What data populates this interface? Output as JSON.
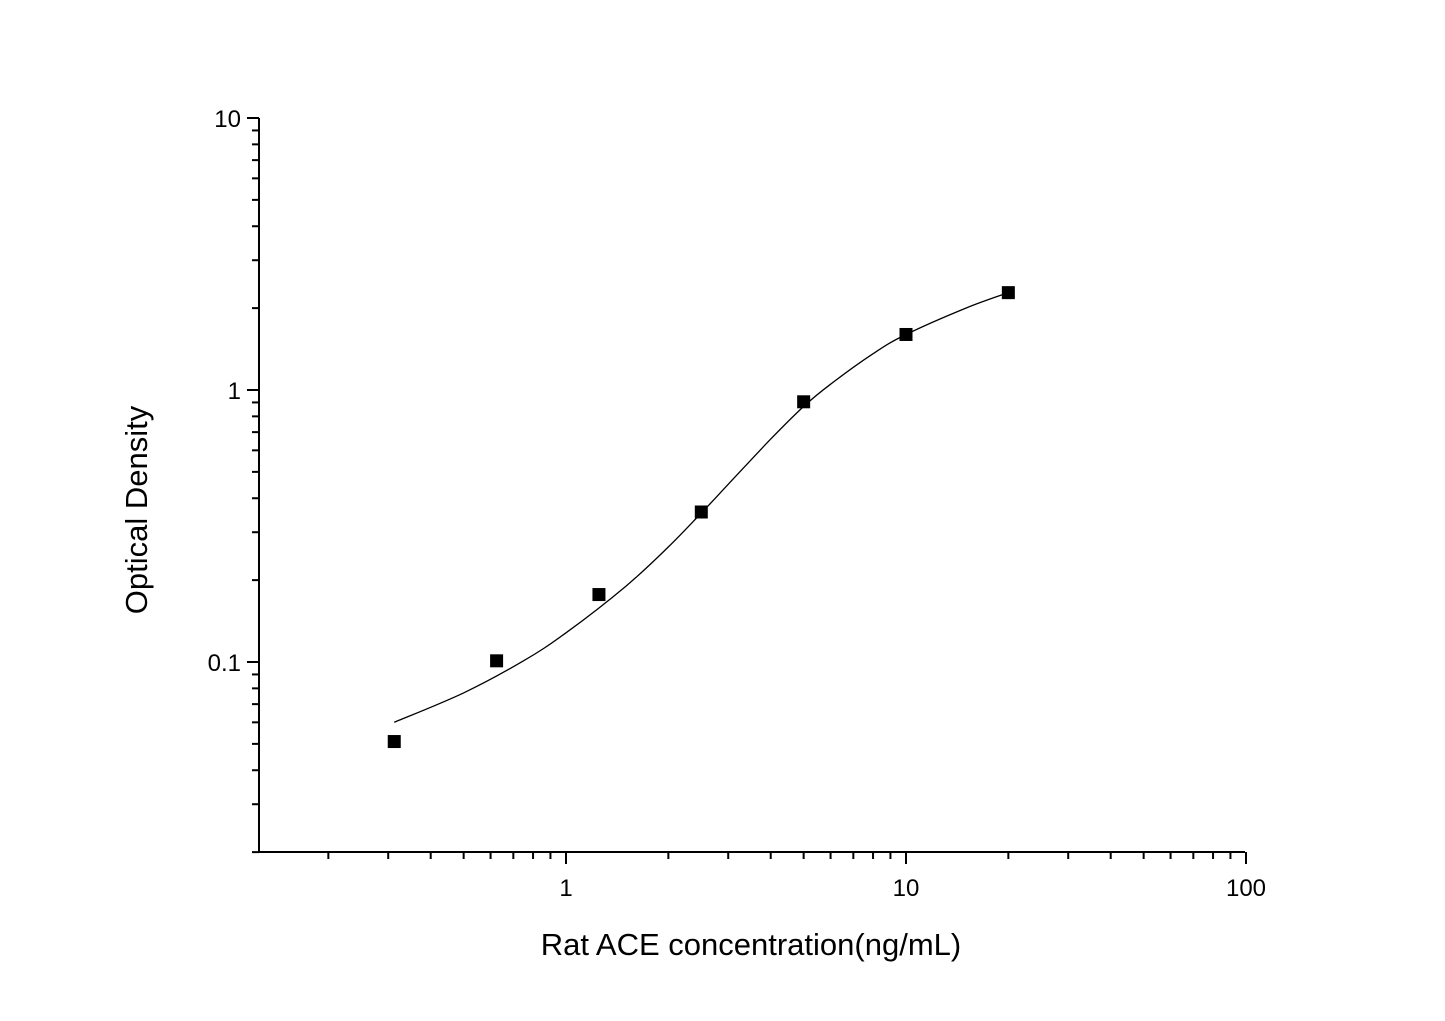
{
  "chart_data": {
    "type": "scatter",
    "title": "",
    "xlabel": "Rat ACE concentration(ng/mL)",
    "ylabel": "Optical Density",
    "x_scale": "log",
    "y_scale": "log",
    "xlim": [
      0.1,
      100
    ],
    "ylim": [
      0.02,
      10
    ],
    "x_ticks": [
      {
        "value": 1,
        "label": "1"
      },
      {
        "value": 10,
        "label": "10"
      },
      {
        "value": 100,
        "label": "100"
      }
    ],
    "y_ticks": [
      {
        "value": 0.1,
        "label": "0.1"
      },
      {
        "value": 1,
        "label": "1"
      },
      {
        "value": 10,
        "label": "10"
      }
    ],
    "grid": false,
    "legend": "none",
    "series": [
      {
        "type": "scatter",
        "marker": "square",
        "color": "#000000",
        "points": [
          {
            "x": 0.3125,
            "y": 0.051
          },
          {
            "x": 0.625,
            "y": 0.101
          },
          {
            "x": 1.25,
            "y": 0.177
          },
          {
            "x": 2.5,
            "y": 0.356
          },
          {
            "x": 5,
            "y": 0.905
          },
          {
            "x": 10,
            "y": 1.6
          },
          {
            "x": 20,
            "y": 2.28
          }
        ]
      },
      {
        "type": "line",
        "color": "#000000",
        "points": [
          {
            "x": 0.3125,
            "y": 0.06
          },
          {
            "x": 0.5,
            "y": 0.077
          },
          {
            "x": 0.75,
            "y": 0.101
          },
          {
            "x": 1,
            "y": 0.128
          },
          {
            "x": 1.5,
            "y": 0.19
          },
          {
            "x": 2,
            "y": 0.265
          },
          {
            "x": 2.5,
            "y": 0.353
          },
          {
            "x": 3,
            "y": 0.45
          },
          {
            "x": 4,
            "y": 0.66
          },
          {
            "x": 5,
            "y": 0.87
          },
          {
            "x": 6,
            "y": 1.05
          },
          {
            "x": 8,
            "y": 1.36
          },
          {
            "x": 10,
            "y": 1.6
          },
          {
            "x": 15,
            "y": 2.0
          },
          {
            "x": 20,
            "y": 2.28
          }
        ]
      }
    ]
  },
  "colors": {
    "background": "#ffffff",
    "axis": "#000000",
    "marker": "#000000",
    "curve": "#000000"
  }
}
